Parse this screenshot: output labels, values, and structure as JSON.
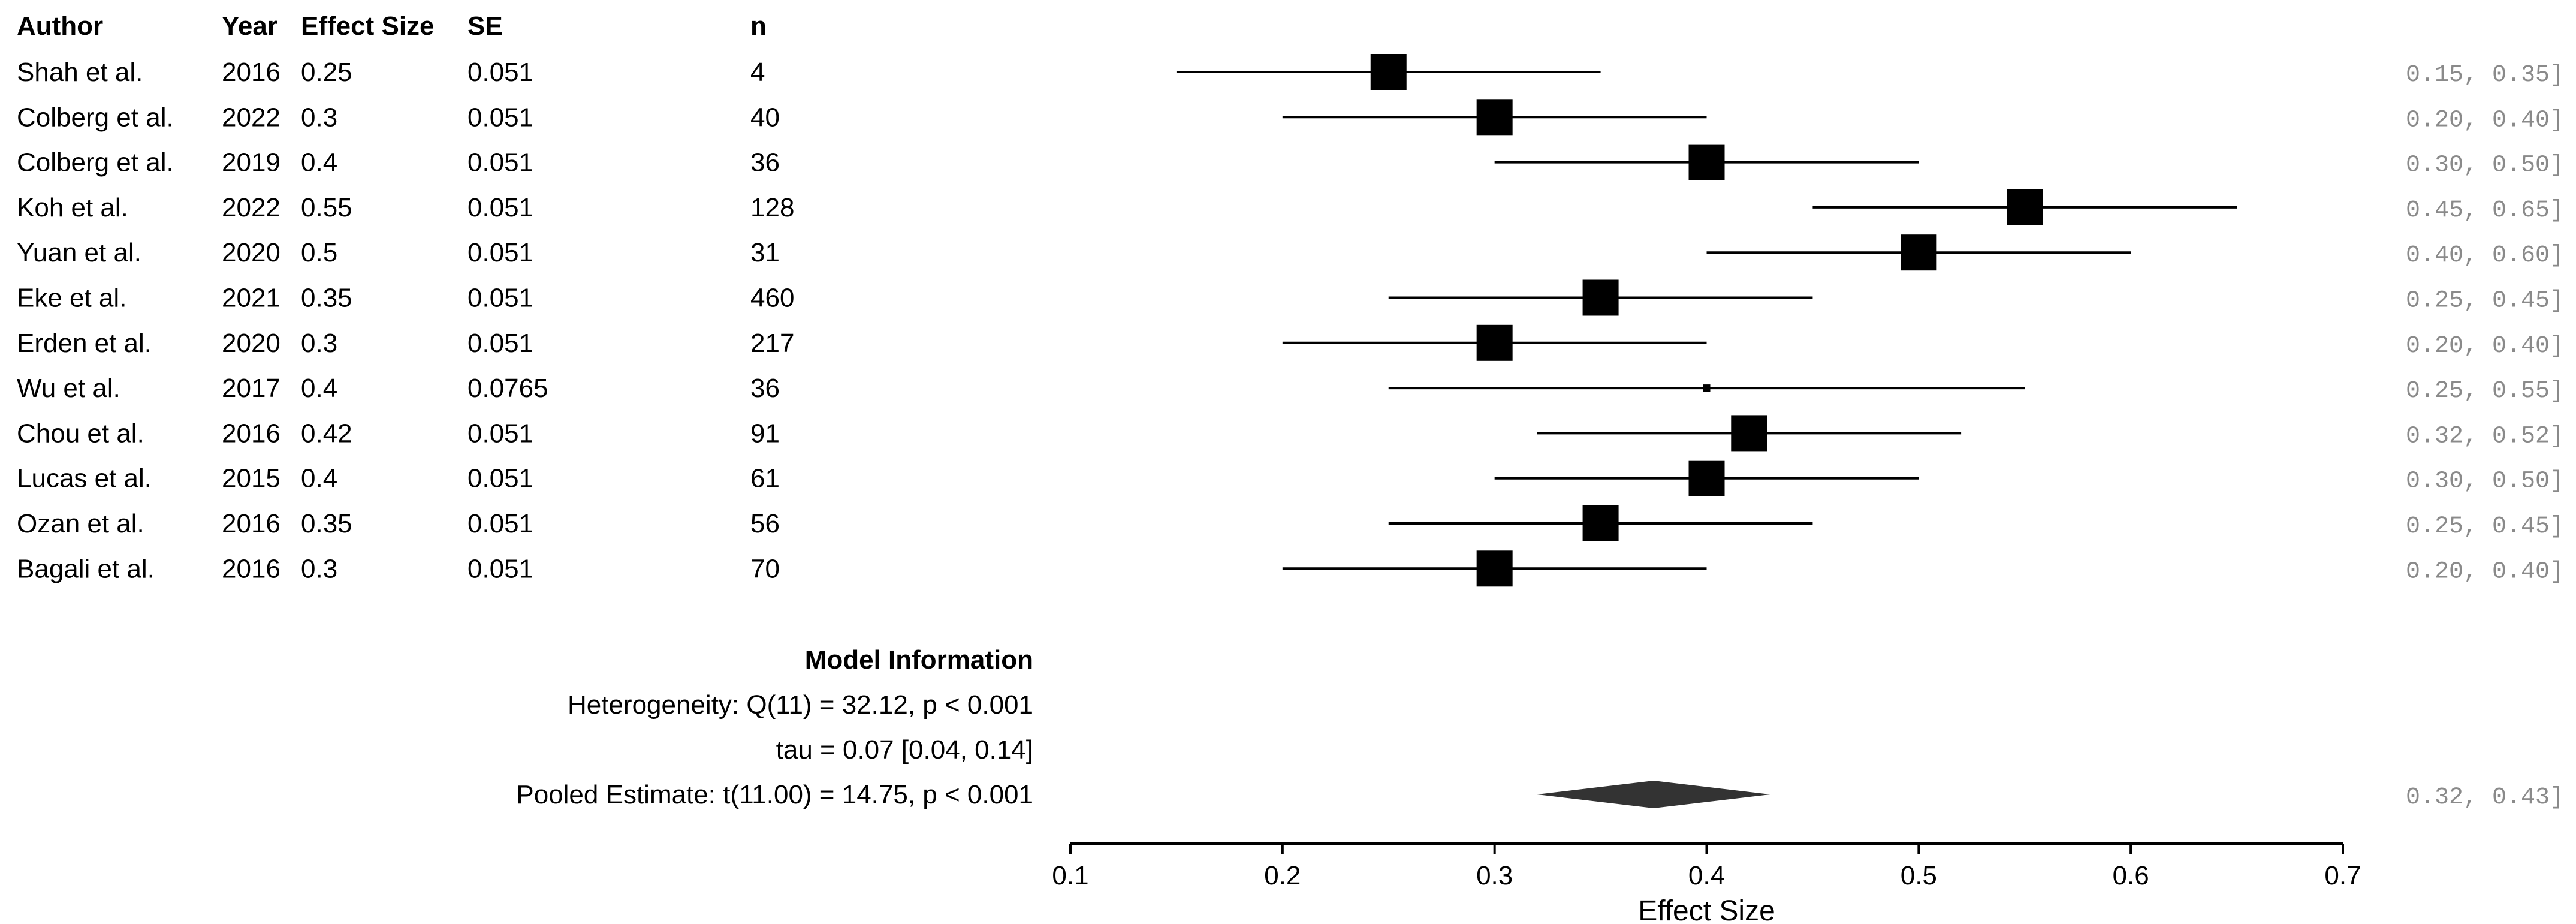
{
  "headers": {
    "author": "Author",
    "year": "Year",
    "effect": "Effect Size",
    "se": "SE",
    "n": "n"
  },
  "studies": [
    {
      "author": "Shah et al.",
      "year": "2016",
      "effect": "0.25",
      "se": "0.051",
      "n": "4",
      "ci": "0.15, 0.35]"
    },
    {
      "author": "Colberg et al.",
      "year": "2022",
      "effect": "0.3",
      "se": "0.051",
      "n": "40",
      "ci": "0.20, 0.40]"
    },
    {
      "author": "Colberg et al.",
      "year": "2019",
      "effect": "0.4",
      "se": "0.051",
      "n": "36",
      "ci": "0.30, 0.50]"
    },
    {
      "author": "Koh et al.",
      "year": "2022",
      "effect": "0.55",
      "se": "0.051",
      "n": "128",
      "ci": "0.45, 0.65]"
    },
    {
      "author": "Yuan et al.",
      "year": "2020",
      "effect": "0.5",
      "se": "0.051",
      "n": "31",
      "ci": "0.40, 0.60]"
    },
    {
      "author": "Eke et al.",
      "year": "2021",
      "effect": "0.35",
      "se": "0.051",
      "n": "460",
      "ci": "0.25, 0.45]"
    },
    {
      "author": "Erden et al.",
      "year": "2020",
      "effect": "0.3",
      "se": "0.051",
      "n": "217",
      "ci": "0.20, 0.40]"
    },
    {
      "author": "Wu et al.",
      "year": "2017",
      "effect": "0.4",
      "se": "0.0765",
      "n": "36",
      "ci": "0.25, 0.55]"
    },
    {
      "author": "Chou et al.",
      "year": "2016",
      "effect": "0.42",
      "se": "0.051",
      "n": "91",
      "ci": "0.32, 0.52]"
    },
    {
      "author": "Lucas et al.",
      "year": "2015",
      "effect": "0.4",
      "se": "0.051",
      "n": "61",
      "ci": "0.30, 0.50]"
    },
    {
      "author": "Ozan et al.",
      "year": "2016",
      "effect": "0.35",
      "se": "0.051",
      "n": "56",
      "ci": "0.25, 0.45]"
    },
    {
      "author": "Bagali et al.",
      "year": "2016",
      "effect": "0.3",
      "se": "0.051",
      "n": "70",
      "ci": "0.20, 0.40]"
    }
  ],
  "model": {
    "title": "Model Information",
    "heterogeneity": "Heterogeneity: Q(11) = 32.12, p < 0.001",
    "tau": "tau = 0.07 [0.04, 0.14]",
    "pooled": "Pooled Estimate: t(11.00) = 14.75, p < 0.001",
    "pooled_ci": "0.32, 0.43]"
  },
  "chart_data": {
    "type": "forest",
    "xlabel": "Effect Size",
    "xlim": [
      0.1,
      0.7
    ],
    "ticks": [
      0.1,
      0.2,
      0.3,
      0.4,
      0.5,
      0.6,
      0.7
    ],
    "tick_labels": [
      "0.1",
      "0.2",
      "0.3",
      "0.4",
      "0.5",
      "0.6",
      "0.7"
    ],
    "points": [
      {
        "label": "Shah et al. 2016",
        "estimate": 0.25,
        "lower": 0.15,
        "upper": 0.35,
        "weight": 1
      },
      {
        "label": "Colberg et al. 2022",
        "estimate": 0.3,
        "lower": 0.2,
        "upper": 0.4,
        "weight": 1
      },
      {
        "label": "Colberg et al. 2019",
        "estimate": 0.4,
        "lower": 0.3,
        "upper": 0.5,
        "weight": 1
      },
      {
        "label": "Koh et al. 2022",
        "estimate": 0.55,
        "lower": 0.45,
        "upper": 0.65,
        "weight": 1
      },
      {
        "label": "Yuan et al. 2020",
        "estimate": 0.5,
        "lower": 0.4,
        "upper": 0.6,
        "weight": 1
      },
      {
        "label": "Eke et al. 2021",
        "estimate": 0.35,
        "lower": 0.25,
        "upper": 0.45,
        "weight": 1
      },
      {
        "label": "Erden et al. 2020",
        "estimate": 0.3,
        "lower": 0.2,
        "upper": 0.4,
        "weight": 1
      },
      {
        "label": "Wu et al. 2017",
        "estimate": 0.4,
        "lower": 0.25,
        "upper": 0.55,
        "weight": 0.02
      },
      {
        "label": "Chou et al. 2016",
        "estimate": 0.42,
        "lower": 0.32,
        "upper": 0.52,
        "weight": 1
      },
      {
        "label": "Lucas et al. 2015",
        "estimate": 0.4,
        "lower": 0.3,
        "upper": 0.5,
        "weight": 1
      },
      {
        "label": "Ozan et al. 2016",
        "estimate": 0.35,
        "lower": 0.25,
        "upper": 0.45,
        "weight": 1
      },
      {
        "label": "Bagali et al. 2016",
        "estimate": 0.3,
        "lower": 0.2,
        "upper": 0.4,
        "weight": 1
      }
    ],
    "pooled": {
      "estimate": 0.375,
      "lower": 0.32,
      "upper": 0.43
    }
  }
}
